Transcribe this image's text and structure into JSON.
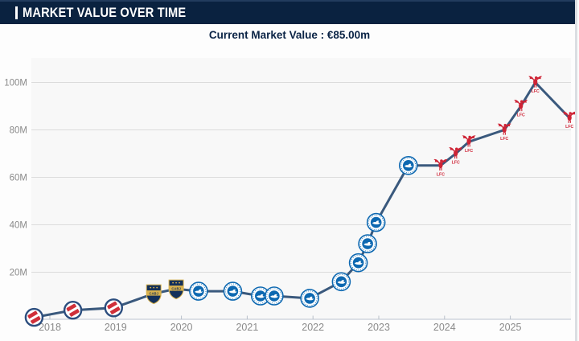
{
  "header": {
    "title": "MARKET VALUE OVER TIME"
  },
  "current_market_value": {
    "text": "Current Market Value : €85.00m"
  },
  "colors": {
    "header_bg": "#0a2240",
    "header_text": "#ffffff",
    "subtitle_text": "#0b2446",
    "line": "#3a597d",
    "plot_bg": "#f8f8f8",
    "grid": "#dcdcdc",
    "axis": "#c8cfd8",
    "tick": "#b8bfc9",
    "tick_label": "#8a8a8a"
  },
  "chart_data": {
    "type": "line",
    "title": "MARKET VALUE OVER TIME",
    "xlabel": "",
    "ylabel": "",
    "grid": true,
    "legend_position": "none",
    "x_axis": {
      "tick_values": [
        2018,
        2019,
        2020,
        2021,
        2022,
        2023,
        2024,
        2025
      ],
      "tick_labels": [
        "2018",
        "2019",
        "2020",
        "2021",
        "2022",
        "2023",
        "2024",
        "2025"
      ],
      "range": [
        2017.72,
        2025.97
      ]
    },
    "y_axis": {
      "tick_values": [
        20,
        40,
        60,
        80,
        100
      ],
      "tick_labels": [
        "20M",
        "40M",
        "60M",
        "80M",
        "100M"
      ],
      "range": [
        0,
        110
      ],
      "unit": "EUR millions"
    },
    "badges": [
      {
        "id": "argentinos",
        "icon": "red-diagonal-round-club-badge",
        "red": "#cf2f39",
        "ring": "#2b4d7e"
      },
      {
        "id": "boca",
        "icon": "cabj-shield-club-badge",
        "text": "CABJ",
        "navy": "#13305a",
        "gold": "#d9b24d"
      },
      {
        "id": "brighton",
        "icon": "blue-seagull-round-club-badge",
        "blue": "#0d68b1"
      },
      {
        "id": "liverpool",
        "icon": "red-liver-bird-club-badge",
        "text": "LFC",
        "red": "#ce2335"
      }
    ],
    "series": [
      {
        "name": "Market value (€ millions)",
        "color": "#3a597d",
        "points": [
          {
            "x": 2017.76,
            "value": 1,
            "badge": "argentinos"
          },
          {
            "x": 2018.35,
            "value": 4,
            "badge": "argentinos"
          },
          {
            "x": 2018.97,
            "value": 5,
            "badge": "argentinos"
          },
          {
            "x": 2019.58,
            "value": 11,
            "badge": "boca"
          },
          {
            "x": 2019.92,
            "value": 13,
            "badge": "boca"
          },
          {
            "x": 2020.26,
            "value": 12,
            "badge": "brighton"
          },
          {
            "x": 2020.78,
            "value": 12,
            "badge": "brighton"
          },
          {
            "x": 2021.2,
            "value": 10,
            "badge": "brighton"
          },
          {
            "x": 2021.41,
            "value": 10,
            "badge": "brighton"
          },
          {
            "x": 2021.95,
            "value": 9,
            "badge": "brighton"
          },
          {
            "x": 2022.43,
            "value": 16,
            "badge": "brighton"
          },
          {
            "x": 2022.69,
            "value": 24,
            "badge": "brighton"
          },
          {
            "x": 2022.83,
            "value": 32,
            "badge": "brighton"
          },
          {
            "x": 2022.96,
            "value": 41,
            "badge": "brighton"
          },
          {
            "x": 2023.45,
            "value": 65,
            "badge": "brighton"
          },
          {
            "x": 2023.94,
            "value": 65,
            "badge": "liverpool"
          },
          {
            "x": 2024.17,
            "value": 70,
            "badge": "liverpool"
          },
          {
            "x": 2024.37,
            "value": 75,
            "badge": "liverpool"
          },
          {
            "x": 2024.91,
            "value": 80,
            "badge": "liverpool"
          },
          {
            "x": 2025.16,
            "value": 90,
            "badge": "liverpool"
          },
          {
            "x": 2025.38,
            "value": 100,
            "badge": "liverpool"
          },
          {
            "x": 2025.9,
            "value": 85,
            "badge": "liverpool"
          }
        ]
      }
    ]
  }
}
